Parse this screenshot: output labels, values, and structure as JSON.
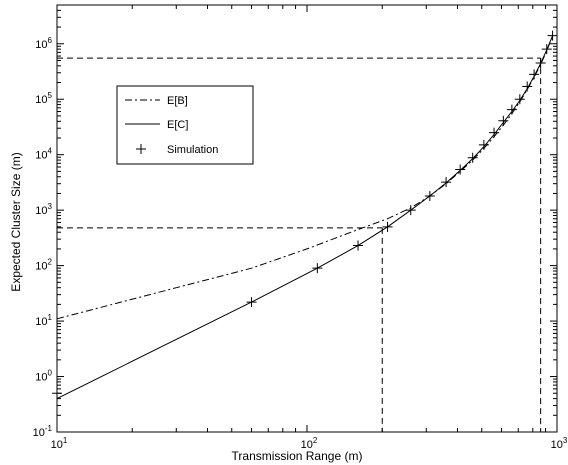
{
  "chart_data": {
    "type": "line",
    "xlabel": "Transmission Range (m)",
    "ylabel": "Expected Cluster Size (m)",
    "xscale": "log",
    "yscale": "log",
    "xlim": [
      10,
      1000
    ],
    "ylim": [
      0.1,
      5000000
    ],
    "grid": false,
    "legend_position": "top-left",
    "x_ticks": [
      {
        "base": "10",
        "exp": "1"
      },
      {
        "base": "10",
        "exp": "2"
      },
      {
        "base": "10",
        "exp": "3"
      }
    ],
    "y_ticks": [
      {
        "base": "10",
        "exp": "-1"
      },
      {
        "base": "10",
        "exp": "0"
      },
      {
        "base": "10",
        "exp": "1"
      },
      {
        "base": "10",
        "exp": "2"
      },
      {
        "base": "10",
        "exp": "3"
      },
      {
        "base": "10",
        "exp": "4"
      },
      {
        "base": "10",
        "exp": "5"
      },
      {
        "base": "10",
        "exp": "6"
      }
    ],
    "series": [
      {
        "name": "E[B]",
        "style": "dash-dot",
        "x": [
          10,
          30,
          60,
          100,
          150,
          210,
          260,
          310,
          360,
          410,
          460,
          510,
          560,
          610,
          660,
          710,
          760,
          810,
          860,
          910,
          960
        ],
        "y": [
          11,
          40,
          90,
          200,
          400,
          700,
          1100,
          1800,
          3000,
          5000,
          8000,
          13000,
          21000,
          34000,
          55000,
          90000,
          150000,
          250000,
          420000,
          750000,
          1400000
        ]
      },
      {
        "name": "E[C]",
        "style": "solid",
        "x": [
          10,
          60,
          110,
          160,
          210,
          260,
          310,
          360,
          410,
          460,
          510,
          560,
          610,
          660,
          710,
          760,
          810,
          860,
          910,
          960
        ],
        "y": [
          0.4,
          22,
          90,
          230,
          500,
          1000,
          1800,
          3100,
          5200,
          8500,
          14000,
          23000,
          38000,
          60000,
          95000,
          155000,
          260000,
          440000,
          780000,
          1400000
        ]
      },
      {
        "name": "Simulation",
        "style": "markers",
        "marker": "+",
        "x": [
          10,
          60,
          110,
          160,
          210,
          260,
          310,
          360,
          410,
          460,
          510,
          560,
          610,
          660,
          710,
          760,
          810,
          860,
          910,
          960
        ],
        "y": [
          0.5,
          22,
          90,
          230,
          500,
          1000,
          1800,
          3200,
          5400,
          8800,
          15000,
          25000,
          41000,
          65000,
          100000,
          170000,
          280000,
          450000,
          800000,
          1400000
        ]
      }
    ],
    "reference_lines": [
      {
        "x": 200,
        "y": 480
      },
      {
        "x": 860,
        "y": 550000
      }
    ]
  }
}
